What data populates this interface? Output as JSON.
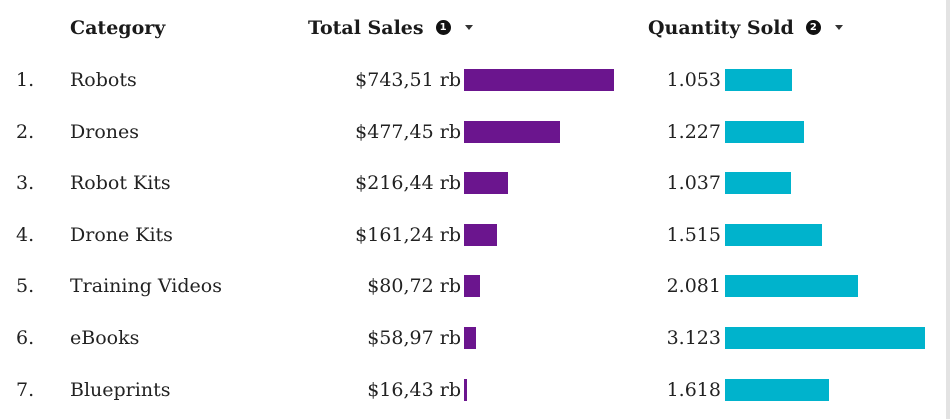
{
  "columns": {
    "category": "Category",
    "total_sales": "Total Sales",
    "total_sales_icon": "1",
    "quantity_sold": "Quantity Sold",
    "quantity_sold_icon": "2"
  },
  "colors": {
    "sales_bar": "#6b158e",
    "quantity_bar": "#00b3cc"
  },
  "icons": {
    "info": "info-circle-icon",
    "sort": "caret-down-icon"
  },
  "chart_data": {
    "type": "table",
    "columns": [
      "Category",
      "Total Sales",
      "Quantity Sold"
    ],
    "rows": [
      {
        "rank": "1.",
        "category": "Robots",
        "sales_label": "$743,51 rb",
        "sales": 743.51,
        "qty_label": "1.053",
        "qty": 1053
      },
      {
        "rank": "2.",
        "category": "Drones",
        "sales_label": "$477,45 rb",
        "sales": 477.45,
        "qty_label": "1.227",
        "qty": 1227
      },
      {
        "rank": "3.",
        "category": "Robot Kits",
        "sales_label": "$216,44 rb",
        "sales": 216.44,
        "qty_label": "1.037",
        "qty": 1037
      },
      {
        "rank": "4.",
        "category": "Drone Kits",
        "sales_label": "$161,24 rb",
        "sales": 161.24,
        "qty_label": "1.515",
        "qty": 1515
      },
      {
        "rank": "5.",
        "category": "Training Videos",
        "sales_label": "$80,72 rb",
        "sales": 80.72,
        "qty_label": "2.081",
        "qty": 2081
      },
      {
        "rank": "6.",
        "category": "eBooks",
        "sales_label": "$58,97 rb",
        "sales": 58.97,
        "qty_label": "3.123",
        "qty": 3123
      },
      {
        "rank": "7.",
        "category": "Blueprints",
        "sales_label": "$16,43 rb",
        "sales": 16.43,
        "qty_label": "1.618",
        "qty": 1618
      }
    ],
    "sales_max": 743.51,
    "qty_max": 3123
  }
}
